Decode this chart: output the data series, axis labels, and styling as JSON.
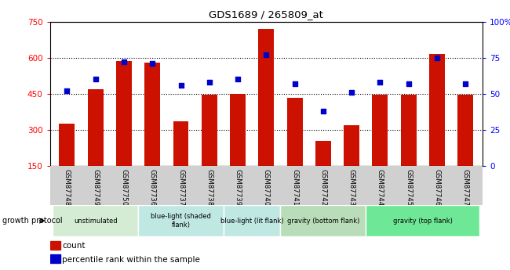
{
  "title": "GDS1689 / 265809_at",
  "samples": [
    "GSM87748",
    "GSM87749",
    "GSM87750",
    "GSM87736",
    "GSM87737",
    "GSM87738",
    "GSM87739",
    "GSM87740",
    "GSM87741",
    "GSM87742",
    "GSM87743",
    "GSM87744",
    "GSM87745",
    "GSM87746",
    "GSM87747"
  ],
  "counts": [
    325,
    468,
    585,
    580,
    335,
    445,
    450,
    720,
    435,
    255,
    320,
    445,
    445,
    615,
    445
  ],
  "percentiles": [
    52,
    60,
    72,
    71,
    56,
    58,
    60,
    77,
    57,
    38,
    51,
    58,
    57,
    75,
    57
  ],
  "groups": [
    {
      "label": "unstimulated",
      "start": 0,
      "end": 3,
      "color": "#d4ecd4"
    },
    {
      "label": "blue-light (shaded\nflank)",
      "start": 3,
      "end": 6,
      "color": "#c0e8e3"
    },
    {
      "label": "blue-light (lit flank)",
      "start": 6,
      "end": 8,
      "color": "#c0e8e3"
    },
    {
      "label": "gravity (bottom flank)",
      "start": 8,
      "end": 11,
      "color": "#b8ddb8"
    },
    {
      "label": "gravity (top flank)",
      "start": 11,
      "end": 15,
      "color": "#6ee896"
    }
  ],
  "ylim_left": [
    150,
    750
  ],
  "ylim_right": [
    0,
    100
  ],
  "yticks_left": [
    150,
    300,
    450,
    600,
    750
  ],
  "yticks_right": [
    0,
    25,
    50,
    75,
    100
  ],
  "grid_lines": [
    300,
    450,
    600
  ],
  "bar_color": "#cc1100",
  "dot_color": "#0000cc",
  "growth_protocol_label": "growth protocol",
  "legend_count_label": "count",
  "legend_pct_label": "percentile rank within the sample"
}
